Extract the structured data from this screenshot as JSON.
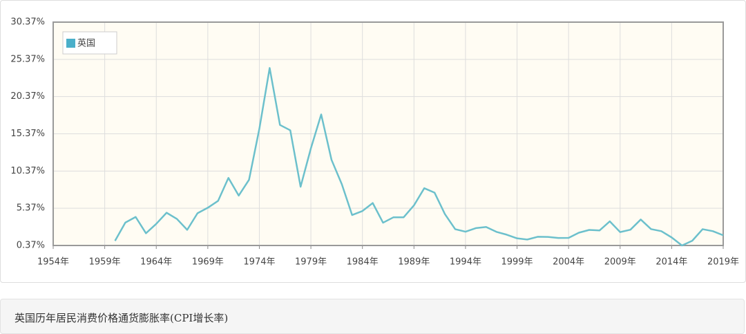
{
  "chart_data": {
    "type": "line",
    "title": "英国历年居民消费价格通货膨胀率(CPI增长率)",
    "x": [
      1960,
      1961,
      1962,
      1963,
      1964,
      1965,
      1966,
      1967,
      1968,
      1969,
      1970,
      1971,
      1972,
      1973,
      1974,
      1975,
      1976,
      1977,
      1978,
      1979,
      1980,
      1981,
      1982,
      1983,
      1984,
      1985,
      1986,
      1987,
      1988,
      1989,
      1990,
      1991,
      1992,
      1993,
      1994,
      1995,
      1996,
      1997,
      1998,
      1999,
      2000,
      2001,
      2002,
      2003,
      2004,
      2005,
      2006,
      2007,
      2008,
      2009,
      2010,
      2011,
      2012,
      2013,
      2014,
      2015,
      2016,
      2017,
      2018,
      2019
    ],
    "series": [
      {
        "name": "英国",
        "color": "#6cc0cc",
        "legend_color": "#4aafc9",
        "values": [
          1.0,
          3.45,
          4.2,
          2.01,
          3.28,
          4.77,
          3.94,
          2.47,
          4.7,
          5.44,
          6.37,
          9.45,
          7.07,
          9.2,
          16.04,
          24.21,
          16.56,
          15.84,
          8.26,
          13.42,
          17.97,
          11.88,
          8.6,
          4.46,
          5.0,
          6.07,
          3.43,
          4.15,
          4.16,
          5.76,
          8.06,
          7.46,
          4.59,
          2.56,
          2.22,
          2.7,
          2.85,
          2.2,
          1.82,
          1.33,
          1.17,
          1.54,
          1.52,
          1.38,
          1.39,
          2.09,
          2.46,
          2.39,
          3.61,
          2.17,
          2.49,
          3.86,
          2.57,
          2.29,
          1.45,
          0.37,
          1.01,
          2.56,
          2.29,
          1.74
        ]
      }
    ],
    "xlim": [
      1954,
      2019
    ],
    "xticks": [
      {
        "value": 1954,
        "label": "1954年"
      },
      {
        "value": 1959,
        "label": "1959年"
      },
      {
        "value": 1964,
        "label": "1964年"
      },
      {
        "value": 1969,
        "label": "1969年"
      },
      {
        "value": 1974,
        "label": "1974年"
      },
      {
        "value": 1979,
        "label": "1979年"
      },
      {
        "value": 1984,
        "label": "1984年"
      },
      {
        "value": 1989,
        "label": "1989年"
      },
      {
        "value": 1994,
        "label": "1994年"
      },
      {
        "value": 1999,
        "label": "1999年"
      },
      {
        "value": 2004,
        "label": "2004年"
      },
      {
        "value": 2009,
        "label": "2009年"
      },
      {
        "value": 2014,
        "label": "2014年"
      },
      {
        "value": 2019,
        "label": "2019年"
      }
    ],
    "ylim": [
      0.37,
      30.37
    ],
    "yticks": [
      {
        "value": 0.37,
        "label": "0.37%"
      },
      {
        "value": 5.37,
        "label": "5.37%"
      },
      {
        "value": 10.37,
        "label": "10.37%"
      },
      {
        "value": 15.37,
        "label": "15.37%"
      },
      {
        "value": 20.37,
        "label": "20.37%"
      },
      {
        "value": 25.37,
        "label": "25.37%"
      },
      {
        "value": 30.37,
        "label": "30.37%"
      }
    ],
    "grid": true,
    "legend": "top-left"
  }
}
